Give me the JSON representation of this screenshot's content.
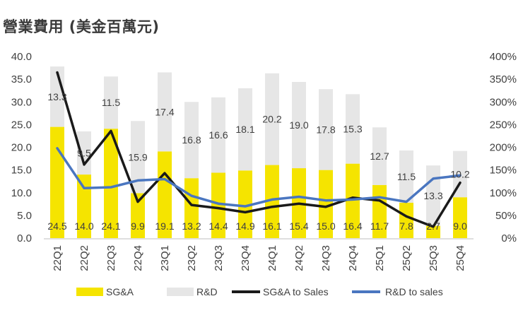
{
  "chart_data": {
    "type": "bar",
    "title": "營業費用 (美金百萬元)",
    "categories": [
      "22Q1",
      "22Q2",
      "22Q3",
      "22Q4",
      "23Q1",
      "23Q2",
      "23Q3",
      "23Q4",
      "24Q1",
      "24Q2",
      "24Q3",
      "24Q4",
      "25Q1",
      "25Q2",
      "25Q3",
      "25Q4"
    ],
    "series": [
      {
        "name": "SG&A",
        "kind": "stacked-bar",
        "axis": "left",
        "color": "#f5e400",
        "values": [
          24.5,
          14.0,
          24.1,
          9.9,
          19.1,
          13.2,
          14.4,
          14.9,
          16.1,
          15.4,
          15.0,
          16.4,
          11.7,
          7.8,
          2.7,
          9.0
        ]
      },
      {
        "name": "R&D",
        "kind": "stacked-bar",
        "axis": "left",
        "color": "#e6e6e6",
        "values": [
          13.3,
          9.5,
          11.5,
          15.9,
          17.4,
          16.8,
          16.6,
          18.1,
          20.2,
          19.0,
          17.8,
          15.3,
          12.7,
          11.5,
          13.3,
          10.2
        ]
      },
      {
        "name": "SG&A to Sales",
        "kind": "line",
        "axis": "right",
        "color": "#1a1a1a",
        "values": [
          365,
          162,
          236,
          80,
          143,
          73,
          66,
          57,
          69,
          76,
          69,
          89,
          83,
          48,
          25,
          122
        ]
      },
      {
        "name": "R&D to sales",
        "kind": "line",
        "axis": "right",
        "color": "#4a76c0",
        "values": [
          198,
          110,
          112,
          127,
          130,
          93,
          76,
          70,
          85,
          91,
          83,
          85,
          90,
          80,
          131,
          138
        ]
      }
    ],
    "y_left": {
      "min": 0,
      "max": 40,
      "ticks": [
        "0.0",
        "5.0",
        "10.0",
        "15.0",
        "20.0",
        "25.0",
        "30.0",
        "35.0",
        "40.0"
      ]
    },
    "y_right": {
      "min": 0,
      "max": 400,
      "ticks": [
        "0%",
        "50%",
        "100%",
        "150%",
        "200%",
        "250%",
        "300%",
        "350%",
        "400%"
      ]
    },
    "legend": {
      "position": "bottom",
      "items": [
        "SG&A",
        "R&D",
        "SG&A to Sales",
        "R&D to sales"
      ]
    }
  }
}
